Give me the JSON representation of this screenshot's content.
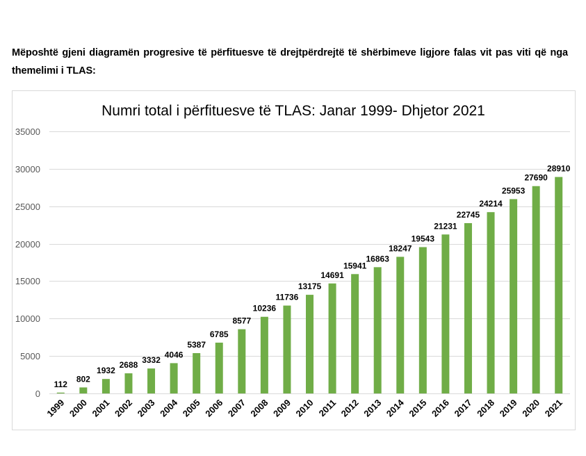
{
  "intro_text": "Mëposhtë gjeni diagramën progresive të përfituesve të drejtpërdrejtë të shërbimeve ligjore falas vit pas viti që nga themelimi i TLAS:",
  "chart_data": {
    "type": "bar",
    "title": "Numri total i përfituesve  të TLAS: Janar 1999- Dhjetor 2021",
    "xlabel": "",
    "ylabel": "",
    "categories": [
      "1999",
      "2000",
      "2001",
      "2002",
      "2003",
      "2004",
      "2005",
      "2006",
      "2007",
      "2008",
      "2009",
      "2010",
      "2011",
      "2012",
      "2013",
      "2014",
      "2015",
      "2016",
      "2017",
      "2018",
      "2019",
      "2020",
      "2021"
    ],
    "values": [
      112,
      802,
      1932,
      2688,
      3332,
      4046,
      5387,
      6785,
      8577,
      10236,
      11736,
      13175,
      14691,
      15941,
      16863,
      18247,
      19543,
      21231,
      22745,
      24214,
      25953,
      27690,
      28910
    ],
    "ylim": [
      0,
      35000
    ],
    "yticks": [
      0,
      5000,
      10000,
      15000,
      20000,
      25000,
      30000,
      35000
    ],
    "grid": true,
    "legend": "none",
    "data_labels": true,
    "bar_color": "#70ad47"
  }
}
